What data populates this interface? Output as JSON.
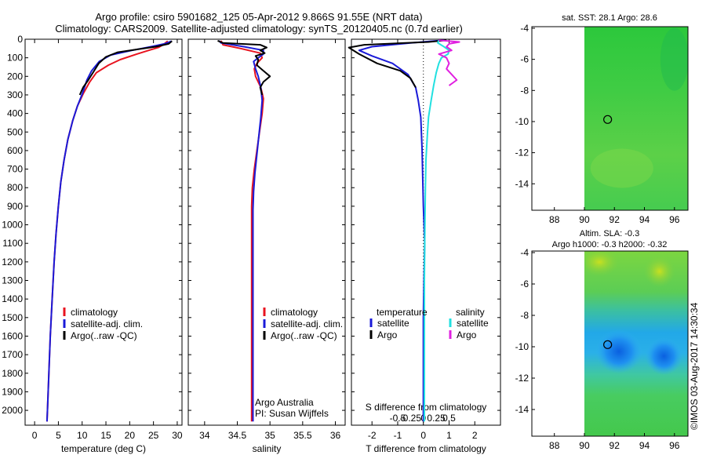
{
  "header": {
    "line1": "Argo profile: csiro 5901682_125 05-Apr-2012 9.866S 91.55E (NRT data)",
    "line2": "Climatology: CARS2009. Satellite-adjusted climatology: synTS_20120405.nc (0.7d earlier)"
  },
  "colors": {
    "climatology": "#e8131f",
    "satellite": "#1a1ad8",
    "argo": "#000000",
    "sal_satellite": "#22e0e0",
    "sal_argo": "#e020e0"
  },
  "depth_axis": {
    "ticks": [
      "0",
      "100",
      "200",
      "300",
      "400",
      "500",
      "600",
      "700",
      "800",
      "900",
      "1000",
      "1100",
      "1200",
      "1300",
      "1400",
      "1500",
      "1600",
      "1700",
      "1800",
      "1900",
      "2000"
    ]
  },
  "chart_data": [
    {
      "type": "line",
      "title": "",
      "xlabel": "temperature (deg C)",
      "ylabel": "",
      "xticks": [
        "0",
        "5",
        "10",
        "15",
        "20",
        "25",
        "30"
      ],
      "xlim": [
        -2,
        31
      ],
      "ylim": [
        2080,
        0
      ],
      "legend": [
        "climatology",
        "satellite-adj. clim.",
        "Argo(..raw -QC)"
      ],
      "series": [
        {
          "name": "climatology",
          "color": "#e8131f",
          "points": [
            [
              28,
              10
            ],
            [
              27,
              30
            ],
            [
              26,
              45
            ],
            [
              24,
              60
            ],
            [
              21.5,
              80
            ],
            [
              18,
              110
            ],
            [
              15.5,
              140
            ],
            [
              13,
              180
            ],
            [
              11.6,
              230
            ],
            [
              10.3,
              290
            ],
            [
              9.0,
              360
            ],
            [
              8.0,
              440
            ],
            [
              7.0,
              540
            ],
            [
              6.2,
              650
            ],
            [
              5.5,
              770
            ],
            [
              5.0,
              900
            ],
            [
              4.5,
              1050
            ],
            [
              4.1,
              1200
            ],
            [
              3.7,
              1400
            ],
            [
              3.3,
              1600
            ],
            [
              3.0,
              1800
            ],
            [
              2.7,
              2000
            ],
            [
              2.6,
              2060
            ]
          ]
        },
        {
          "name": "satellite-adj. clim.",
          "color": "#1a1ad8",
          "points": [
            [
              28.8,
              10
            ],
            [
              27.3,
              25
            ],
            [
              24.5,
              40
            ],
            [
              20.5,
              60
            ],
            [
              16,
              85
            ],
            [
              13.6,
              120
            ],
            [
              12,
              170
            ],
            [
              11,
              220
            ],
            [
              10.1,
              290
            ],
            [
              9.0,
              360
            ],
            [
              8.0,
              440
            ],
            [
              7.0,
              540
            ],
            [
              6.2,
              650
            ],
            [
              5.5,
              770
            ],
            [
              5.0,
              900
            ],
            [
              4.5,
              1050
            ],
            [
              4.1,
              1200
            ],
            [
              3.7,
              1400
            ],
            [
              3.3,
              1600
            ],
            [
              3.0,
              1800
            ],
            [
              2.7,
              2000
            ],
            [
              2.6,
              2060
            ]
          ]
        },
        {
          "name": "Argo(..raw -QC)",
          "color": "#000000",
          "points": [
            [
              28.9,
              10
            ],
            [
              28.2,
              25
            ],
            [
              25.5,
              40
            ],
            [
              21.5,
              55
            ],
            [
              17.5,
              70
            ],
            [
              15,
              95
            ],
            [
              13.5,
              130
            ],
            [
              12.4,
              175
            ],
            [
              11.3,
              220
            ],
            [
              10.2,
              260
            ],
            [
              9.5,
              300
            ]
          ]
        }
      ]
    },
    {
      "type": "line",
      "title": "",
      "xlabel": "salinity",
      "ylabel": "",
      "xticks": [
        "34",
        "34.5",
        "35",
        "35.5",
        "36"
      ],
      "xlim": [
        33.75,
        36.15
      ],
      "ylim": [
        2080,
        0
      ],
      "legend": [
        "climatology",
        "satellite-adj. clim.",
        "Argo(..raw -QC)"
      ],
      "annotations": [
        "Argo Australia",
        "PI: Susan Wijffels"
      ],
      "series": [
        {
          "name": "climatology",
          "color": "#e8131f",
          "points": [
            [
              34.25,
              8
            ],
            [
              34.28,
              30
            ],
            [
              34.55,
              50
            ],
            [
              34.85,
              75
            ],
            [
              34.88,
              100
            ],
            [
              34.8,
              130
            ],
            [
              34.76,
              160
            ],
            [
              34.78,
              200
            ],
            [
              34.86,
              260
            ],
            [
              34.9,
              320
            ],
            [
              34.88,
              400
            ],
            [
              34.84,
              500
            ],
            [
              34.8,
              600
            ],
            [
              34.76,
              700
            ],
            [
              34.73,
              800
            ],
            [
              34.72,
              900
            ],
            [
              34.72,
              1000
            ],
            [
              34.72,
              1200
            ],
            [
              34.72,
              1500
            ],
            [
              34.72,
              1800
            ],
            [
              34.72,
              2060
            ]
          ]
        },
        {
          "name": "satellite-adj. clim.",
          "color": "#1a1ad8",
          "points": [
            [
              34.22,
              8
            ],
            [
              34.25,
              20
            ],
            [
              34.6,
              40
            ],
            [
              34.9,
              60
            ],
            [
              34.9,
              80
            ],
            [
              34.82,
              100
            ],
            [
              34.75,
              120
            ],
            [
              34.78,
              160
            ],
            [
              34.82,
              200
            ],
            [
              34.86,
              260
            ],
            [
              34.88,
              330
            ],
            [
              34.86,
              420
            ],
            [
              34.83,
              520
            ],
            [
              34.8,
              620
            ],
            [
              34.77,
              720
            ],
            [
              34.75,
              820
            ],
            [
              34.74,
              920
            ],
            [
              34.74,
              1100
            ],
            [
              34.74,
              1400
            ],
            [
              34.74,
              1700
            ],
            [
              34.74,
              2060
            ]
          ]
        },
        {
          "name": "Argo(..raw -QC)",
          "color": "#000000",
          "points": [
            [
              34.2,
              8
            ],
            [
              34.28,
              20
            ],
            [
              34.85,
              30
            ],
            [
              34.95,
              45
            ],
            [
              34.85,
              60
            ],
            [
              34.92,
              75
            ],
            [
              34.78,
              90
            ],
            [
              34.82,
              110
            ],
            [
              34.8,
              140
            ],
            [
              34.9,
              170
            ],
            [
              35.0,
              200
            ],
            [
              34.9,
              230
            ],
            [
              34.85,
              260
            ],
            [
              34.88,
              300
            ]
          ]
        }
      ]
    },
    {
      "type": "line",
      "title": "",
      "xlabel": "T difference from climatology",
      "xlabel_top": "S difference from climatology",
      "xticks": [
        "-2",
        "-1",
        "0",
        "1",
        "2"
      ],
      "xticks_top": [
        "-0.5",
        "-0.25",
        "0",
        "0.25",
        "0.5"
      ],
      "xlim": [
        -2.8,
        3.0
      ],
      "ylim": [
        2080,
        0
      ],
      "legend_headers": [
        "temperature",
        "salinity"
      ],
      "legend": [
        "satellite",
        "Argo",
        "satellite",
        "Argo"
      ],
      "series": [
        {
          "name": "T satellite",
          "color": "#1a1ad8",
          "points": [
            [
              0.8,
              5
            ],
            [
              -0.5,
              20
            ],
            [
              -2.0,
              40
            ],
            [
              -2.5,
              60
            ],
            [
              -2.0,
              90
            ],
            [
              -1.2,
              130
            ],
            [
              -0.6,
              190
            ],
            [
              -0.3,
              260
            ],
            [
              -0.2,
              330
            ],
            [
              -0.1,
              420
            ],
            [
              -0.05,
              600
            ],
            [
              0.0,
              900
            ],
            [
              0.05,
              1100
            ],
            [
              0.02,
              1300
            ],
            [
              0.0,
              1500
            ],
            [
              0.0,
              1800
            ],
            [
              0.0,
              2060
            ]
          ]
        },
        {
          "name": "T Argo",
          "color": "#000000",
          "points": [
            [
              0.9,
              5
            ],
            [
              0.2,
              15
            ],
            [
              -2.3,
              30
            ],
            [
              -2.9,
              45
            ],
            [
              -2.5,
              80
            ],
            [
              -1.8,
              130
            ],
            [
              -0.9,
              170
            ],
            [
              -0.5,
              210
            ],
            [
              -0.3,
              260
            ]
          ]
        },
        {
          "name": "S satellite",
          "color": "#22e0e0",
          "points": [
            [
              0.3,
              5
            ],
            [
              0.28,
              20
            ],
            [
              0.4,
              40
            ],
            [
              0.5,
              60
            ],
            [
              0.48,
              80
            ],
            [
              0.35,
              100
            ],
            [
              0.3,
              130
            ],
            [
              0.25,
              180
            ],
            [
              0.2,
              250
            ],
            [
              0.15,
              330
            ],
            [
              0.1,
              420
            ],
            [
              0.08,
              500
            ],
            [
              0.05,
              650
            ],
            [
              0.04,
              800
            ],
            [
              0.03,
              1000
            ],
            [
              0.02,
              1300
            ],
            [
              0.02,
              1600
            ],
            [
              0.02,
              2060
            ]
          ]
        },
        {
          "name": "S Argo",
          "color": "#e020e0",
          "points": [
            [
              0.3,
              5
            ],
            [
              0.7,
              15
            ],
            [
              0.5,
              25
            ],
            [
              0.45,
              40
            ],
            [
              0.55,
              60
            ],
            [
              0.3,
              80
            ],
            [
              0.45,
              100
            ],
            [
              0.5,
              130
            ],
            [
              0.45,
              160
            ],
            [
              0.55,
              190
            ],
            [
              0.65,
              220
            ],
            [
              0.5,
              250
            ]
          ]
        }
      ]
    },
    {
      "type": "heatmap",
      "title": "sat. SST: 28.1 Argo: 28.6",
      "xticks": [
        "88",
        "90",
        "92",
        "94",
        "96"
      ],
      "yticks": [
        "-4",
        "-6",
        "-8",
        "-10",
        "-12",
        "-14"
      ],
      "xlim": [
        86.5,
        96.9
      ],
      "ylim": [
        -15.7,
        -3.9
      ],
      "argo_position": [
        91.55,
        -9.866
      ]
    },
    {
      "type": "heatmap",
      "title": "Altim. SLA: -0.3",
      "subtitle": "Argo h1000: -0.3 h2000: -0.32",
      "xticks": [
        "88",
        "90",
        "92",
        "94",
        "96"
      ],
      "yticks": [
        "-4",
        "-6",
        "-8",
        "-10",
        "-12",
        "-14"
      ],
      "xlim": [
        86.5,
        96.9
      ],
      "ylim": [
        -15.7,
        -3.9
      ],
      "argo_position": [
        91.55,
        -9.866
      ]
    }
  ],
  "footer": {
    "credit": "©IMOS 03-Aug-2017 14:30:34"
  }
}
